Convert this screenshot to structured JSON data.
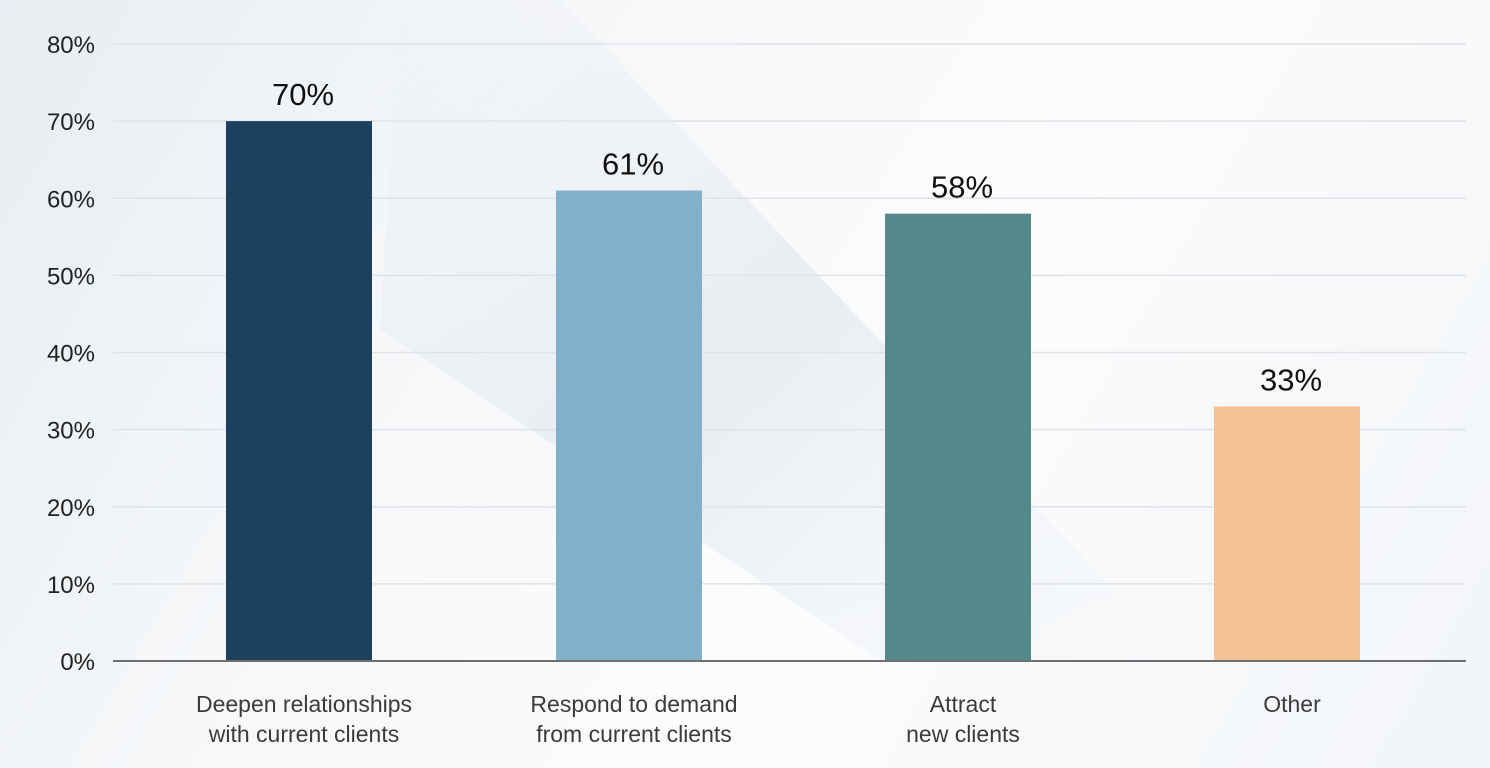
{
  "chart_data": {
    "type": "bar",
    "categories": [
      [
        "Deepen relationships",
        "with current clients"
      ],
      [
        "Respond to demand",
        "from current clients"
      ],
      [
        "Attract",
        "new clients"
      ],
      [
        "Other"
      ]
    ],
    "values": [
      70,
      61,
      58,
      33
    ],
    "value_labels": [
      "70%",
      "61%",
      "58%",
      "33%"
    ],
    "colors": [
      "#1e4060",
      "#82afc9",
      "#54888b",
      "#f4c293"
    ],
    "yticks": [
      "0%",
      "10%",
      "20%",
      "30%",
      "40%",
      "50%",
      "60%",
      "70%",
      "80%"
    ],
    "ylim": [
      0,
      80
    ],
    "title": "",
    "xlabel": "",
    "ylabel": "",
    "grid": true,
    "legend": "none"
  }
}
